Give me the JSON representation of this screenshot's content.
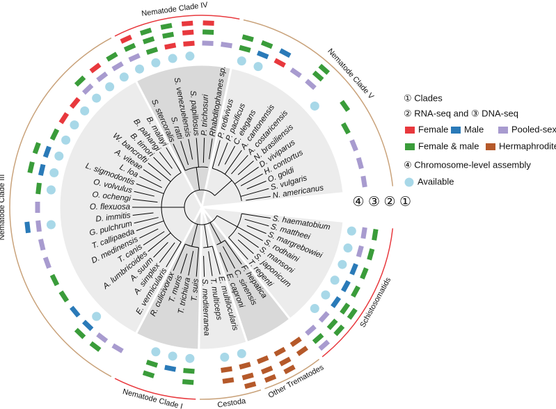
{
  "clades": [
    {
      "name": "Schistosomatids",
      "color": "#e8383d",
      "species": [
        {
          "name": "S. haematobium",
          "assembly": true,
          "dna": 2,
          "rna": [
            3
          ]
        },
        {
          "name": "S. mattheei",
          "assembly": true,
          "dna": 2,
          "rna": [
            3
          ]
        },
        {
          "name": "S. margrebowiei",
          "assembly": true,
          "dna": 1,
          "rna": [
            3
          ]
        },
        {
          "name": "S. rodhaini",
          "assembly": true,
          "dna": 1,
          "rna": [
            3
          ]
        },
        {
          "name": "S. mansoni",
          "assembly": true,
          "dna": 1,
          "rna": [
            3,
            3
          ]
        },
        {
          "name": "S. japonicum",
          "assembly": true,
          "dna": 2,
          "rna": [
            3,
            3
          ]
        },
        {
          "name": "T. regenti",
          "assembly": false,
          "dna": 2,
          "rna": [
            3,
            2
          ]
        }
      ]
    },
    {
      "name": "Other Trematodes",
      "color": "#c9a27a",
      "species": [
        {
          "name": "F. hepatica",
          "assembly": false,
          "dna": 4,
          "rna": [
            4
          ]
        },
        {
          "name": "C. sinensis",
          "assembly": false,
          "dna": 4,
          "rna": [
            4,
            4
          ]
        },
        {
          "name": "E. caproni",
          "assembly": false,
          "dna": 4,
          "rna": [
            4,
            4
          ]
        }
      ]
    },
    {
      "name": "Cestoda",
      "color": "#c9a27a",
      "species": [
        {
          "name": "E. multilocularis",
          "assembly": true,
          "dna": 4,
          "rna": [
            4,
            4
          ]
        },
        {
          "name": "T. multiceps",
          "assembly": true,
          "dna": 4,
          "rna": [
            4
          ]
        },
        {
          "name": "S. mediterranea",
          "assembly": false,
          "dna": null,
          "rna": []
        }
      ]
    },
    {
      "name": "Nematode Clade I",
      "color": "#e8383d",
      "species": [
        {
          "name": "T. suis",
          "assembly": true,
          "dna": 3,
          "rna": [
            3
          ]
        },
        {
          "name": "T. trichiura",
          "assembly": true,
          "dna": 1,
          "rna": []
        },
        {
          "name": "T. muris",
          "assembly": true,
          "dna": 3,
          "rna": [
            3
          ]
        },
        {
          "name": "R. culicivorax",
          "assembly": false,
          "dna": null,
          "rna": []
        }
      ]
    },
    {
      "name": "Nematode Clade III",
      "color": "#c9a27a",
      "species": [
        {
          "name": "E. vermicularis",
          "assembly": false,
          "dna": 2,
          "rna": []
        },
        {
          "name": "A. simplex",
          "assembly": false,
          "dna": 2,
          "rna": [
            3
          ]
        },
        {
          "name": "A. suum",
          "assembly": true,
          "dna": 1,
          "rna": [
            3
          ]
        },
        {
          "name": "A. lumbricoides",
          "assembly": false,
          "dna": 1,
          "rna": []
        },
        {
          "name": "T. canis",
          "assembly": false,
          "dna": 3,
          "rna": []
        },
        {
          "name": "D. medinensis",
          "assembly": false,
          "dna": 3,
          "rna": []
        },
        {
          "name": "T. callipaeda",
          "assembly": false,
          "dna": 2,
          "rna": []
        },
        {
          "name": "G. pulchrum",
          "assembly": false,
          "dna": 2,
          "rna": []
        },
        {
          "name": "D. immitis",
          "assembly": true,
          "dna": 2,
          "rna": [
            1
          ]
        },
        {
          "name": "O. flexuosa",
          "assembly": false,
          "dna": 2,
          "rna": []
        },
        {
          "name": "O. ochengi",
          "assembly": true,
          "dna": 3,
          "rna": []
        },
        {
          "name": "O. volvulus",
          "assembly": true,
          "dna": 1,
          "rna": [
            3
          ]
        },
        {
          "name": "L. sigmodontis",
          "assembly": true,
          "dna": 1,
          "rna": [
            3
          ]
        },
        {
          "name": "L. loa",
          "assembly": true,
          "dna": 3,
          "rna": []
        },
        {
          "name": "A. viteae",
          "assembly": true,
          "dna": 0,
          "rna": []
        },
        {
          "name": "W. bancrofti",
          "assembly": true,
          "dna": 0,
          "rna": []
        },
        {
          "name": "B. timori",
          "assembly": true,
          "dna": 2,
          "rna": [
            3
          ]
        },
        {
          "name": "B. pahangi",
          "assembly": true,
          "dna": 2,
          "rna": [
            0
          ]
        },
        {
          "name": "B. malayi",
          "assembly": true,
          "dna": 2,
          "rna": [
            3
          ]
        }
      ]
    },
    {
      "name": "Nematode Clade IV",
      "color": "#e8383d",
      "species": [
        {
          "name": "S. stercoralis",
          "assembly": true,
          "dna": 2,
          "rna": [
            3,
            0
          ]
        },
        {
          "name": "S. ratti",
          "assembly": true,
          "dna": 3,
          "rna": [
            3,
            3
          ]
        },
        {
          "name": "S. venezuelensis",
          "assembly": true,
          "dna": 0,
          "rna": [
            3,
            3
          ]
        },
        {
          "name": "S. papillosus",
          "assembly": true,
          "dna": 0,
          "rna": [
            0,
            0
          ]
        },
        {
          "name": "P. trichosuri",
          "assembly": false,
          "dna": 2,
          "rna": [
            3,
            0
          ]
        },
        {
          "name": "Rhabditophanes sp.",
          "assembly": false,
          "dna": 2,
          "rna": []
        }
      ]
    },
    {
      "name": "Nematode Clade V",
      "color": "#c9a27a",
      "species": [
        {
          "name": "P. redivivus",
          "assembly": true,
          "dna": 3,
          "rna": [
            3
          ]
        },
        {
          "name": "P. pacificus",
          "assembly": true,
          "dna": 1,
          "rna": [
            3
          ]
        },
        {
          "name": "C. elegans",
          "assembly": false,
          "dna": 0,
          "rna": [
            1
          ]
        },
        {
          "name": "A. cantonensis",
          "assembly": false,
          "dna": 2,
          "rna": []
        },
        {
          "name": "A. costaricensis",
          "assembly": false,
          "dna": 2,
          "rna": [
            3,
            3
          ]
        },
        {
          "name": "N. brasiliensis",
          "assembly": true,
          "dna": null,
          "rna": []
        },
        {
          "name": "D. viviparus",
          "assembly": false,
          "dna": null,
          "rna": [
            3
          ]
        },
        {
          "name": "H. contortus",
          "assembly": false,
          "dna": 3,
          "rna": []
        },
        {
          "name": "O. goldi",
          "assembly": false,
          "dna": 2,
          "rna": []
        },
        {
          "name": "S. vulgaris",
          "assembly": false,
          "dna": 2,
          "rna": []
        },
        {
          "name": "N. americanus",
          "assembly": false,
          "dna": 2,
          "rna": []
        }
      ]
    }
  ],
  "ring_labels": [
    "④",
    "③",
    "②",
    "①"
  ],
  "legend": {
    "clades": "① Clades",
    "seq": "② RNA-seq and ③ DNA-seq",
    "items": [
      {
        "label": "Female",
        "color": "#e8383d"
      },
      {
        "label": "Male",
        "color": "#2a7ab8"
      },
      {
        "label": "Pooled-sex",
        "color": "#a89bcf"
      },
      {
        "label": "Female & male",
        "color": "#3a9c3a"
      },
      {
        "label": "Hermaphrodite",
        "color": "#b5592a"
      }
    ],
    "assembly": "④ Chromosome-level assembly",
    "available": "Available",
    "available_color": "#a8d8e8"
  }
}
